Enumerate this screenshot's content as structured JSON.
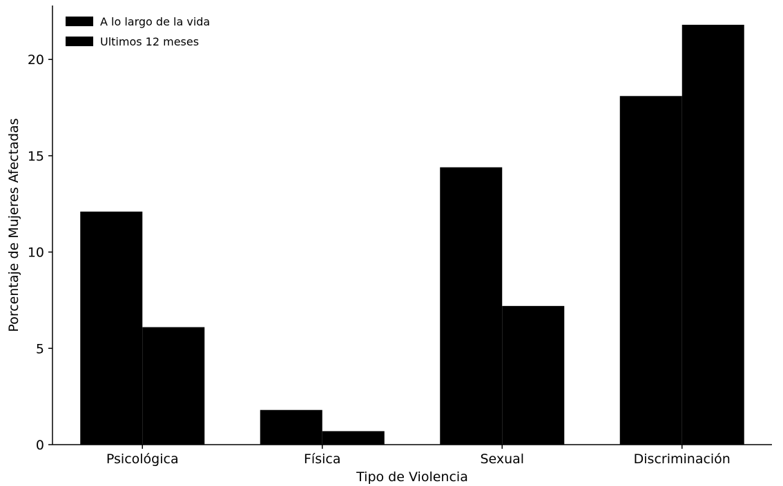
{
  "chart_data": {
    "type": "bar",
    "title": "",
    "xlabel": "Tipo de Violencia",
    "ylabel": "Porcentaje de Mujeres Afectadas",
    "categories": [
      "Psicológica",
      "Física",
      "Sexual",
      "Discriminación"
    ],
    "series": [
      {
        "name": "A lo largo de la vida",
        "values": [
          12.1,
          1.8,
          14.4,
          18.1
        ],
        "color": "#000000"
      },
      {
        "name": "Ultimos 12 meses",
        "values": [
          6.1,
          0.7,
          7.2,
          21.8
        ],
        "color": "#000000"
      }
    ],
    "ylim": [
      0,
      22.8
    ],
    "yticks": [
      0,
      5,
      10,
      15,
      20
    ],
    "grid": false,
    "legend_position": "top-left"
  }
}
